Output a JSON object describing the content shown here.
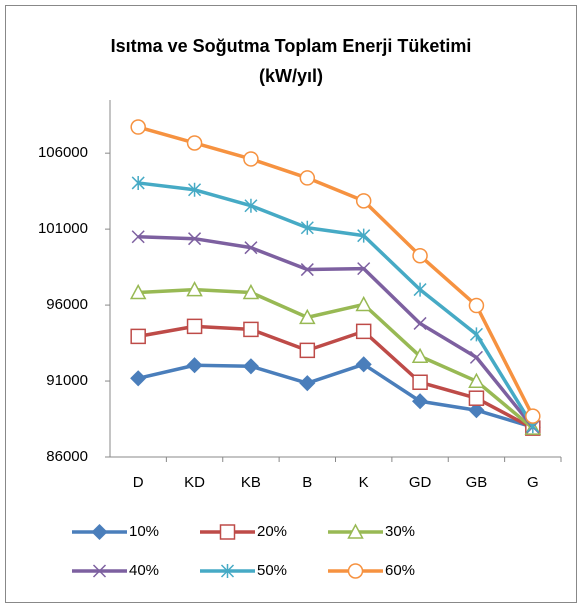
{
  "chart_data": {
    "type": "line",
    "title": "Isıtma ve Soğutma Toplam Enerji Tüketimi",
    "subtitle": "(kW/yıl)",
    "categories": [
      "D",
      "KD",
      "KB",
      "B",
      "K",
      "GD",
      "GB",
      "G"
    ],
    "series": [
      {
        "name": "10%",
        "color": "#4a7ebb",
        "marker": "diamond",
        "values": [
          91180,
          92040,
          91970,
          90860,
          92100,
          89670,
          89080,
          87970
        ]
      },
      {
        "name": "20%",
        "color": "#be4b48",
        "marker": "square",
        "values": [
          93940,
          94600,
          94400,
          93020,
          94270,
          90920,
          89870,
          87900
        ]
      },
      {
        "name": "30%",
        "color": "#98b954",
        "marker": "triangle",
        "values": [
          96830,
          97020,
          96830,
          95190,
          96040,
          92630,
          90990,
          87900
        ]
      },
      {
        "name": "40%",
        "color": "#7d60a0",
        "marker": "x",
        "values": [
          100500,
          100370,
          99780,
          98340,
          98400,
          94790,
          92560,
          87970
        ]
      },
      {
        "name": "50%",
        "color": "#46aac5",
        "marker": "star",
        "values": [
          104040,
          103590,
          102540,
          101090,
          100570,
          97020,
          94070,
          88030
        ]
      },
      {
        "name": "60%",
        "color": "#f69240",
        "marker": "circle",
        "values": [
          107720,
          106670,
          105620,
          104370,
          102860,
          99250,
          95970,
          88690
        ]
      }
    ],
    "ylim": [
      86000,
      109500
    ],
    "yticks": [
      86000,
      91000,
      96000,
      101000,
      106000
    ],
    "grid": false,
    "legend": "bottom"
  }
}
